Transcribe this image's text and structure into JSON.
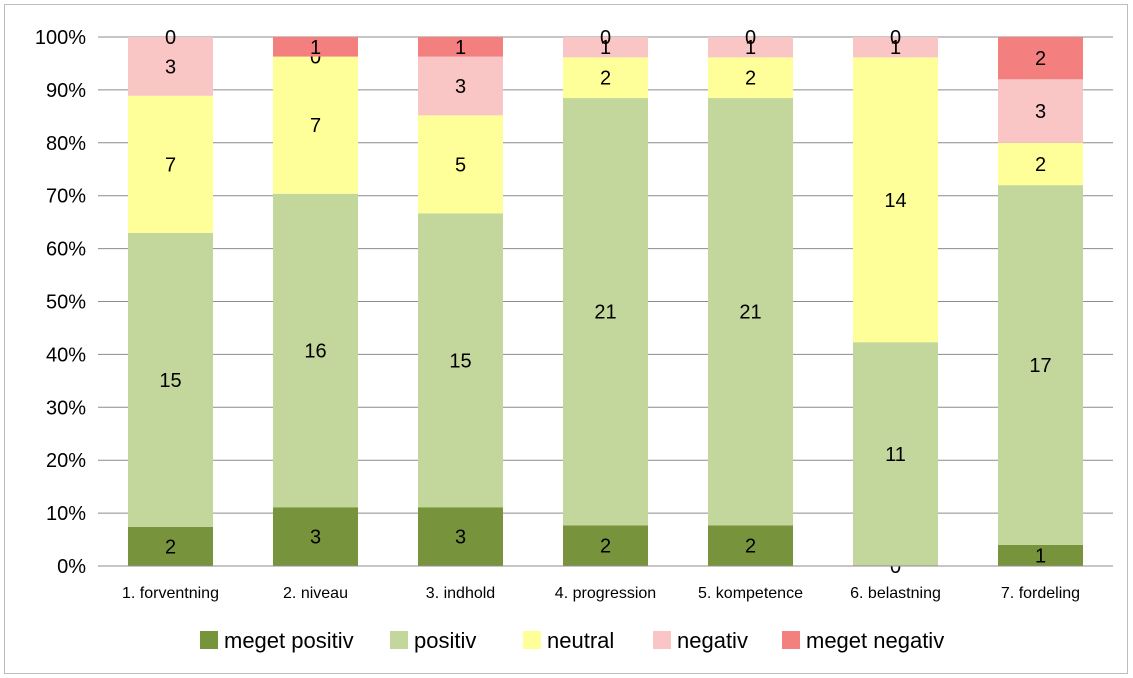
{
  "chart_data": {
    "type": "bar",
    "stacked": "percent",
    "categories": [
      "1. forventning",
      "2. niveau",
      "3. indhold",
      "4. progression",
      "5. kompetence",
      "6. belastning",
      "7. fordeling"
    ],
    "series": [
      {
        "name": "meget positiv",
        "color": "#77933C",
        "values": [
          2,
          3,
          3,
          2,
          2,
          0,
          1
        ]
      },
      {
        "name": "positiv",
        "color": "#C3D69B",
        "values": [
          15,
          16,
          15,
          21,
          21,
          11,
          17
        ]
      },
      {
        "name": "neutral",
        "color": "#FFFF99",
        "values": [
          7,
          7,
          5,
          2,
          2,
          14,
          2
        ]
      },
      {
        "name": "negativ",
        "color": "#F9C5C5",
        "values": [
          3,
          0,
          3,
          1,
          1,
          1,
          3
        ]
      },
      {
        "name": "meget negativ",
        "color": "#F47F7F",
        "values": [
          0,
          1,
          1,
          0,
          0,
          0,
          2
        ]
      }
    ],
    "yticks": [
      "0%",
      "10%",
      "20%",
      "30%",
      "40%",
      "50%",
      "60%",
      "70%",
      "80%",
      "90%",
      "100%"
    ],
    "ylim": [
      0,
      100
    ],
    "grid": true,
    "legend": "bottom"
  }
}
